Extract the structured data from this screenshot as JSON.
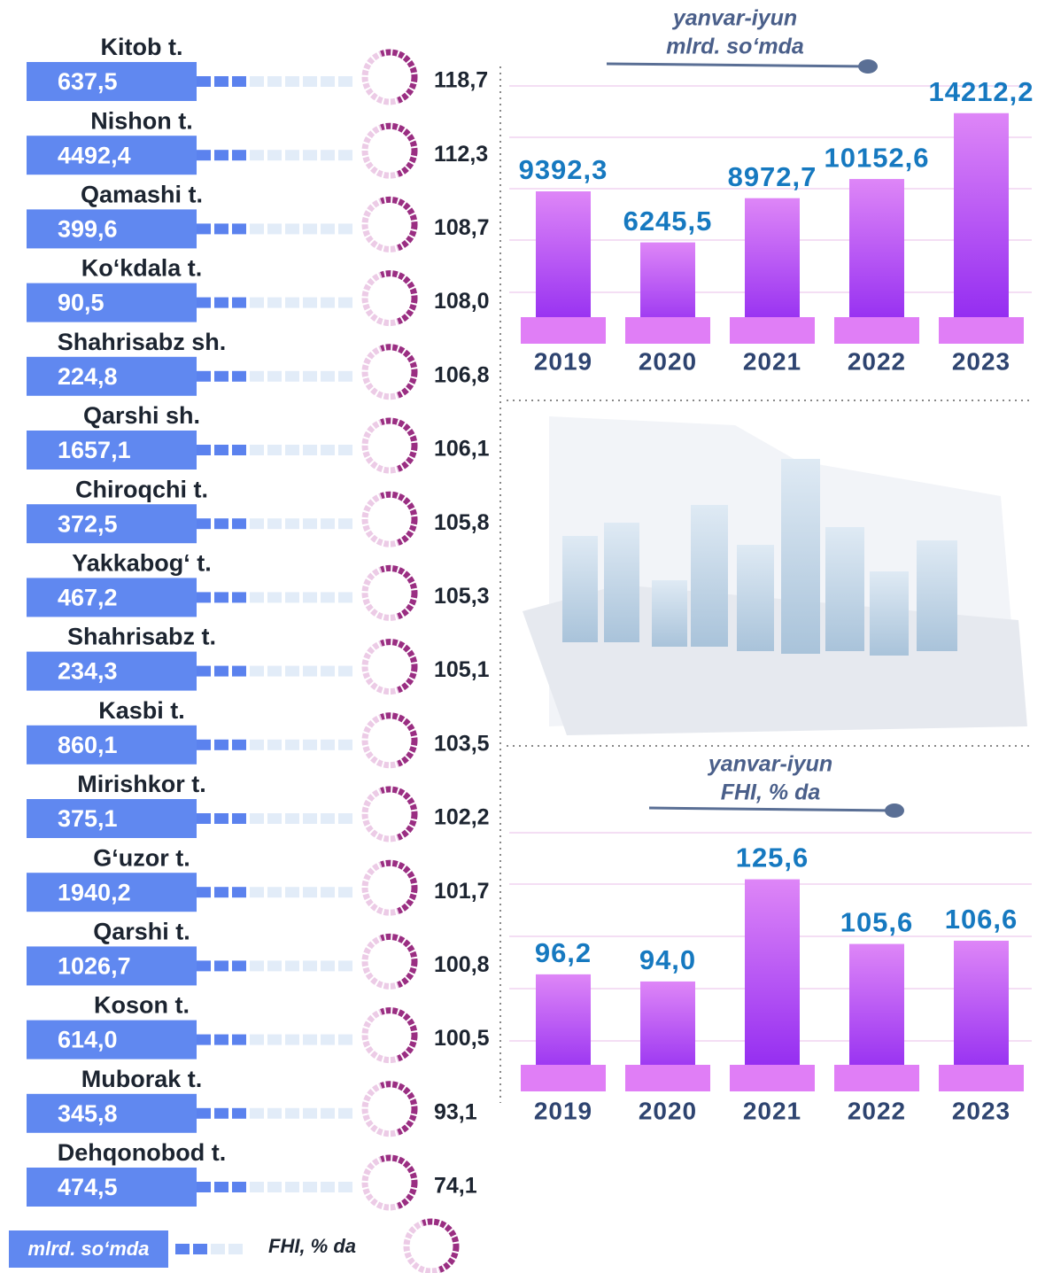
{
  "chart_data": [
    {
      "type": "district-list",
      "categories": [
        "Kitob t.",
        "Nishon t.",
        "Qamashi t.",
        "Ko‘kdala t.",
        "Shahrisabz sh.",
        "Qarshi sh.",
        "Chiroqchi t.",
        "Yakkabog‘ t.",
        "Shahrisabz t.",
        "Kasbi t.",
        "Mirishkor t.",
        "G‘uzor t.",
        "Qarshi t.",
        "Koson t.",
        "Muborak t.",
        "Dehqonobod t."
      ],
      "series": [
        {
          "name": "mlrd. so‘mda",
          "color": "#6088f0",
          "values": [
            637.5,
            4492.4,
            399.6,
            90.5,
            224.8,
            1657.1,
            372.5,
            467.2,
            234.3,
            860.1,
            375.1,
            1940.2,
            1026.7,
            614.0,
            345.8,
            474.5
          ],
          "value_labels": [
            "637,5",
            "4492,4",
            "399,6",
            "90,5",
            "224,8",
            "1657,1",
            "372,5",
            "467,2",
            "234,3",
            "860,1",
            "375,1",
            "1940,2",
            "1026,7",
            "614,0",
            "345,8",
            "474,5"
          ]
        },
        {
          "name": "FHI, % da",
          "color": "#9a2e82",
          "values": [
            118.7,
            112.3,
            108.7,
            108.0,
            106.8,
            106.1,
            105.8,
            105.3,
            105.1,
            103.5,
            102.2,
            101.7,
            100.8,
            100.5,
            93.1,
            74.1
          ],
          "value_labels": [
            "118,7",
            "112,3",
            "108,7",
            "108,0",
            "106,8",
            "106,1",
            "105,8",
            "105,3",
            "105,1",
            "103,5",
            "102,2",
            "101,7",
            "100,8",
            "100,5",
            "93,1",
            "74,1"
          ]
        }
      ]
    },
    {
      "type": "bar",
      "title": "yanvar-iyun",
      "subtitle": "mlrd. so‘mda",
      "categories": [
        "2019",
        "2020",
        "2021",
        "2022",
        "2023"
      ],
      "values": [
        9392.3,
        6245.5,
        8972.7,
        10152.6,
        14212.2
      ],
      "value_labels": [
        "9392,3",
        "6245,5",
        "8972,7",
        "10152,6",
        "14212,2"
      ],
      "ylim": [
        0,
        16000
      ]
    },
    {
      "type": "bar",
      "title": "yanvar-iyun",
      "subtitle": "FHI, % da",
      "categories": [
        "2019",
        "2020",
        "2021",
        "2022",
        "2023"
      ],
      "values": [
        96.2,
        94.0,
        125.6,
        105.6,
        106.6
      ],
      "value_labels": [
        "96,2",
        "94,0",
        "125,6",
        "105,6",
        "106,6"
      ],
      "ylim": [
        60,
        140
      ]
    }
  ]
}
